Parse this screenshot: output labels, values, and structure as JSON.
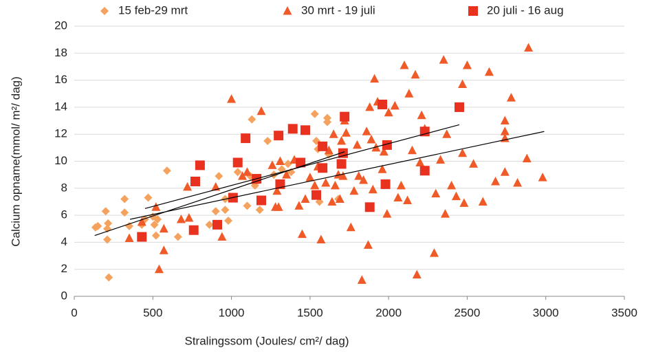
{
  "chart_data": {
    "type": "scatter",
    "xlabel": "Stralingssom (Joules/ cm²/ dag)",
    "ylabel": "Calcium opname(mmol/ m²/ dag)",
    "xlim": [
      0,
      3500
    ],
    "xticks": [
      0,
      500,
      1000,
      1500,
      2000,
      2500,
      3000,
      3500
    ],
    "ylim": [
      0,
      20
    ],
    "yticks": [
      0,
      2,
      4,
      6,
      8,
      10,
      12,
      14,
      16,
      18,
      20
    ],
    "grid": true,
    "legend": "top",
    "series": [
      {
        "name": "15 feb-29 mrt",
        "color": "#f5a25f",
        "marker": "diamond",
        "x": [
          135,
          150,
          200,
          210,
          215,
          220,
          210,
          320,
          320,
          350,
          430,
          450,
          470,
          500,
          510,
          520,
          530,
          590,
          660,
          860,
          900,
          920,
          960,
          960,
          980,
          1040,
          1100,
          1120,
          1130,
          1150,
          1180,
          1230,
          1270,
          1320,
          1360,
          1530,
          1540,
          1560,
          1610,
          1610,
          1620,
          1680,
          1550,
          1380
        ],
        "values": [
          5.1,
          5.2,
          6.3,
          4.2,
          5.4,
          1.4,
          5.0,
          7.2,
          6.2,
          5.2,
          5.3,
          5.7,
          7.3,
          5.9,
          5.3,
          4.5,
          5.7,
          9.3,
          4.4,
          5.3,
          6.3,
          8.9,
          6.4,
          7.2,
          5.6,
          9.2,
          6.7,
          8.9,
          13.1,
          8.2,
          6.4,
          11.5,
          9.0,
          9.4,
          9.8,
          13.5,
          11.5,
          7.0,
          13.2,
          12.9,
          10.5,
          7.2,
          10.9,
          9.2
        ]
      },
      {
        "name": "30 mrt - 19 juli",
        "color": "#f05a28",
        "marker": "triangle",
        "x": [
          350,
          430,
          520,
          540,
          570,
          570,
          680,
          720,
          730,
          900,
          940,
          1000,
          1070,
          1100,
          1150,
          1190,
          1260,
          1280,
          1290,
          1300,
          1310,
          1350,
          1400,
          1430,
          1450,
          1470,
          1500,
          1530,
          1550,
          1570,
          1600,
          1620,
          1640,
          1650,
          1660,
          1680,
          1690,
          1700,
          1710,
          1720,
          1730,
          1760,
          1780,
          1800,
          1810,
          1830,
          1840,
          1860,
          1870,
          1880,
          1890,
          1900,
          1910,
          1920,
          1930,
          1960,
          1970,
          1990,
          2000,
          2040,
          2060,
          2080,
          2100,
          2120,
          2130,
          2150,
          2170,
          2180,
          2200,
          2210,
          2230,
          2290,
          2300,
          2330,
          2350,
          2360,
          2370,
          2400,
          2430,
          2470,
          2470,
          2480,
          2500,
          2540,
          2600,
          2640,
          2680,
          2740,
          2740,
          2740,
          2740,
          2780,
          2820,
          2880,
          2890,
          2980
        ],
        "values": [
          4.3,
          5.5,
          6.6,
          2.0,
          3.4,
          5.0,
          5.7,
          8.1,
          5.8,
          8.1,
          4.4,
          14.6,
          8.9,
          9.2,
          8.6,
          13.7,
          9.7,
          6.6,
          7.8,
          6.6,
          10.0,
          9.0,
          10.1,
          6.7,
          4.6,
          7.2,
          8.8,
          8.2,
          9.6,
          4.2,
          8.4,
          10.8,
          7.0,
          12.0,
          8.2,
          9.0,
          7.2,
          11.5,
          8.9,
          13.0,
          12.1,
          5.1,
          7.8,
          11.2,
          8.9,
          1.2,
          8.6,
          12.2,
          3.8,
          14.0,
          11.6,
          7.9,
          16.1,
          11.0,
          14.4,
          9.4,
          10.7,
          6.1,
          13.6,
          14.1,
          7.3,
          8.2,
          17.1,
          7.1,
          15.0,
          10.8,
          16.4,
          1.6,
          9.9,
          13.4,
          12.4,
          3.2,
          7.6,
          10.1,
          17.5,
          6.1,
          12.0,
          8.2,
          7.4,
          10.6,
          15.7,
          6.9,
          17.1,
          9.8,
          7.0,
          16.6,
          8.5,
          9.2,
          11.7,
          12.2,
          13.0,
          14.7,
          8.4,
          10.2,
          18.4,
          8.8
        ]
      },
      {
        "name": "20 juli - 16 aug",
        "color": "#e8311f",
        "marker": "square",
        "x": [
          430,
          760,
          770,
          800,
          910,
          1010,
          1040,
          1090,
          1160,
          1190,
          1300,
          1310,
          1390,
          1440,
          1470,
          1540,
          1580,
          1580,
          1700,
          1710,
          1720,
          1880,
          1960,
          1980,
          1990,
          2230,
          2230,
          2450
        ],
        "values": [
          4.4,
          4.9,
          8.5,
          9.7,
          5.3,
          7.3,
          9.9,
          11.7,
          8.7,
          7.1,
          11.9,
          8.3,
          12.4,
          9.9,
          12.3,
          7.5,
          9.5,
          11.1,
          9.8,
          10.6,
          13.3,
          6.6,
          14.2,
          8.3,
          11.2,
          12.2,
          9.3,
          14.0
        ]
      }
    ],
    "trendlines": [
      {
        "x": [
          130,
          1720
        ],
        "values": [
          4.5,
          10.7
        ]
      },
      {
        "x": [
          355,
          2990
        ],
        "values": [
          5.7,
          12.2
        ]
      },
      {
        "x": [
          450,
          2450
        ],
        "values": [
          6.5,
          12.7
        ]
      }
    ]
  }
}
